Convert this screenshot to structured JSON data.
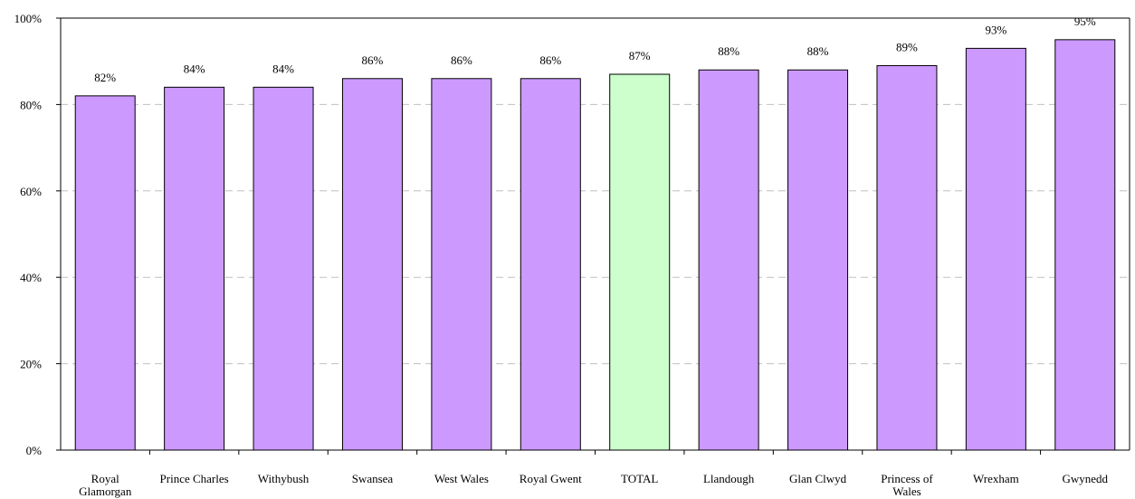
{
  "chart_data": {
    "type": "bar",
    "title": "",
    "xlabel": "",
    "ylabel": "",
    "ylim": [
      0,
      100
    ],
    "y_ticks": [
      "0%",
      "20%",
      "40%",
      "60%",
      "80%",
      "100%"
    ],
    "grid": "dashed horizontal",
    "categories": [
      [
        "Royal",
        "Glamorgan"
      ],
      [
        "Prince Charles"
      ],
      [
        "Withybush"
      ],
      [
        "Swansea"
      ],
      [
        "West Wales"
      ],
      [
        "Royal Gwent"
      ],
      [
        "TOTAL"
      ],
      [
        "Llandough"
      ],
      [
        "Glan Clwyd"
      ],
      [
        "Princess of",
        "Wales"
      ],
      [
        "Wrexham"
      ],
      [
        "Gwynedd"
      ]
    ],
    "values": [
      82,
      84,
      84,
      86,
      86,
      86,
      87,
      88,
      88,
      89,
      93,
      95
    ],
    "data_labels": [
      "82%",
      "84%",
      "84%",
      "86%",
      "86%",
      "86%",
      "87%",
      "88%",
      "88%",
      "89%",
      "93%",
      "95%"
    ],
    "highlight_category_index": 6,
    "colors": {
      "bar": "#cc99ff",
      "highlight_bar": "#ccffcc",
      "bar_stroke": "#000000",
      "grid": "#c0c0c0",
      "axis": "#000000"
    }
  }
}
